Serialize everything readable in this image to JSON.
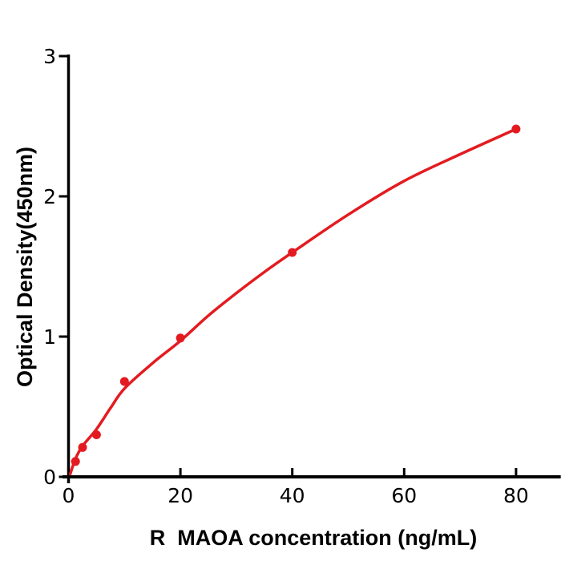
{
  "page": {
    "background": "#ffffff"
  },
  "chart_data": {
    "type": "scatter",
    "title": "",
    "xlabel": "R  MAOA concentration (ng/mL)",
    "ylabel": "Optical Density(450nm)",
    "x": [
      1.25,
      2.5,
      5,
      10,
      20,
      40,
      80
    ],
    "od": [
      0.11,
      0.21,
      0.3,
      0.68,
      0.99,
      1.6,
      2.48
    ],
    "fit_curve": {
      "x": [
        0.3,
        1.25,
        2.5,
        5,
        7.5,
        10,
        15,
        20,
        25,
        30,
        35,
        40,
        50,
        60,
        70,
        80
      ],
      "od": [
        0.02,
        0.13,
        0.22,
        0.34,
        0.49,
        0.63,
        0.81,
        0.97,
        1.15,
        1.31,
        1.46,
        1.6,
        1.87,
        2.11,
        2.3,
        2.48
      ]
    },
    "x_ticks": [
      0,
      20,
      40,
      60,
      80
    ],
    "y_ticks": [
      0,
      1,
      2,
      3
    ],
    "xlim": [
      0,
      88
    ],
    "ylim": [
      0,
      3
    ],
    "grid": false,
    "legend": "none",
    "colors": {
      "series": "#e31b20",
      "axis": "#000000",
      "text": "#000000"
    }
  }
}
